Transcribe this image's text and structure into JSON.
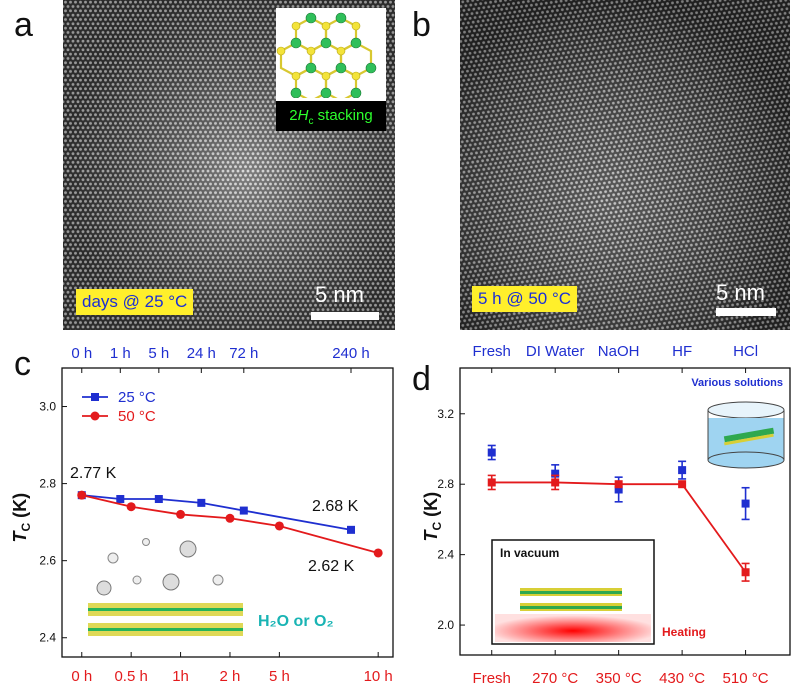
{
  "panels": {
    "a": {
      "letter": "a",
      "condition_label": "days @ 25 °C",
      "scale_label": "5 nm",
      "inset_label_prefix": "2",
      "inset_label_italic": "H",
      "inset_label_sub": "c",
      "inset_label_suffix": " stacking"
    },
    "b": {
      "letter": "b",
      "condition_label": "5 h @ 50 °C",
      "scale_label": "5 nm"
    },
    "c": {
      "letter": "c"
    },
    "d": {
      "letter": "d"
    }
  },
  "colors": {
    "blue": "#1f2fd0",
    "red": "#e31a1c",
    "label_yellow": "#ffef2b",
    "inset_text_green": "#2dff2d"
  },
  "chart_data": [
    {
      "id": "c",
      "type": "line",
      "ylabel_main": "T",
      "ylabel_sub": "C",
      "ylabel_unit": " (K)",
      "ylim": [
        2.35,
        3.1
      ],
      "yticks": [
        2.4,
        2.6,
        2.8,
        3.0
      ],
      "ytick_labels": [
        "2.4",
        "2.6",
        "2.8",
        "3.0"
      ],
      "x_positions": [
        0,
        1,
        2,
        3,
        4,
        5
      ],
      "xlim": [
        -0.4,
        6.3
      ],
      "top_tick_labels": [
        "0 h",
        "1 h",
        "5 h",
        "24 h",
        "72 h",
        "240 h"
      ],
      "top_tick_x": [
        0,
        0.78,
        1.56,
        2.42,
        3.28,
        5.45
      ],
      "bottom_tick_labels": [
        "0 h",
        "0.5 h",
        "1h",
        "2 h",
        "5 h",
        "10 h"
      ],
      "bottom_tick_x": [
        0,
        1,
        2,
        3,
        4,
        6
      ],
      "series": [
        {
          "name": "25 °C",
          "color": "#1f2fd0",
          "marker": "square",
          "x": [
            0,
            0.78,
            1.56,
            2.42,
            3.28,
            5.45
          ],
          "values": [
            2.77,
            2.76,
            2.76,
            2.75,
            2.73,
            2.68
          ]
        },
        {
          "name": "50 °C",
          "color": "#e31a1c",
          "marker": "circle",
          "x": [
            0,
            1,
            2,
            3,
            4,
            6
          ],
          "values": [
            2.77,
            2.74,
            2.72,
            2.71,
            2.69,
            2.62
          ]
        }
      ],
      "annotations": [
        {
          "text": "2.77 K",
          "color": "#111111"
        },
        {
          "text": "2.68 K",
          "color": "#111111"
        },
        {
          "text": "2.62 K",
          "color": "#111111"
        },
        {
          "text": "H₂O or O₂",
          "color": "#19b4b4"
        }
      ],
      "legend_position": "top-left"
    },
    {
      "id": "d",
      "type": "scatter",
      "ylabel_main": "T",
      "ylabel_sub": "C",
      "ylabel_unit": " (K)",
      "ylim": [
        1.83,
        3.46
      ],
      "yticks": [
        2.0,
        2.4,
        2.8,
        3.2
      ],
      "ytick_labels": [
        "2.0",
        "2.4",
        "2.8",
        "3.2"
      ],
      "xlim": [
        -0.5,
        4.7
      ],
      "top_categories": [
        "Fresh",
        "DI Water",
        "NaOH",
        "HF",
        "HCl"
      ],
      "bottom_categories": [
        "Fresh",
        "270 °C",
        "350 °C",
        "430 °C",
        "510 °C"
      ],
      "series": [
        {
          "name": "Various solutions",
          "color": "#1f2fd0",
          "marker": "square",
          "values": [
            2.98,
            2.86,
            2.77,
            2.88,
            2.69
          ],
          "errors": [
            0.04,
            0.05,
            0.07,
            0.05,
            0.09
          ],
          "line": false
        },
        {
          "name": "Heating",
          "color": "#e31a1c",
          "marker": "square",
          "values": [
            2.81,
            2.81,
            2.8,
            2.8,
            2.3
          ],
          "errors": [
            0.04,
            0.04,
            0.0,
            0.0,
            0.05
          ],
          "line": true
        }
      ],
      "annotations": [
        {
          "text": "Various solutions",
          "color": "#1f2fd0"
        },
        {
          "text": "In vacuum",
          "color": "#111111"
        },
        {
          "text": "Heating",
          "color": "#e31a1c"
        }
      ]
    }
  ]
}
